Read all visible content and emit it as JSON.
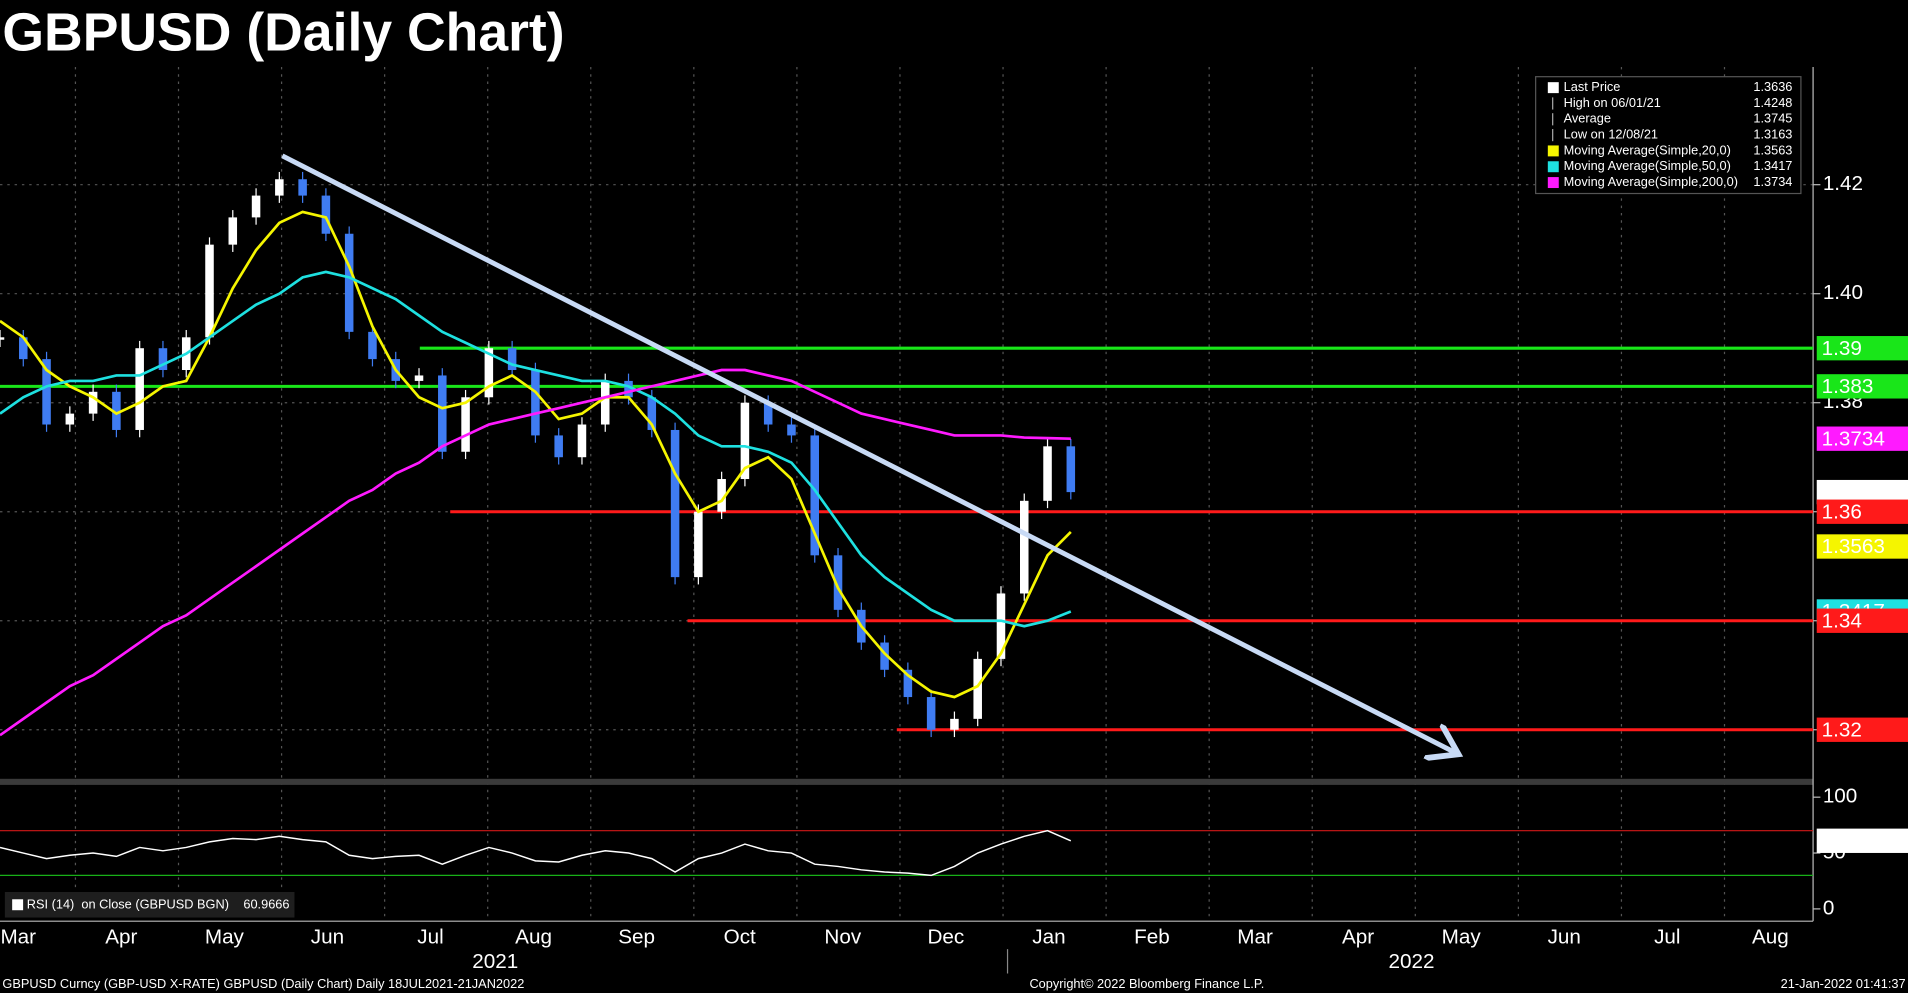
{
  "chart_data": [
    {
      "type": "line",
      "title": "GBPUSD (Daily Chart)",
      "xtick_labels": [
        "Mar",
        "Apr",
        "May",
        "Jun",
        "Jul",
        "Aug",
        "Sep",
        "Oct",
        "Nov",
        "Dec",
        "Jan",
        "Feb",
        "Mar",
        "Apr",
        "May",
        "Jun",
        "Jul",
        "Aug"
      ],
      "year_labels": [
        "2021",
        "2022"
      ],
      "ylim": [
        1.311,
        1.4416
      ],
      "yticks": [
        1.32,
        1.34,
        1.36,
        1.38,
        {
          "value": 1.4,
          "label": "1.40"
        },
        1.42
      ],
      "grid": true,
      "series": [
        {
          "name": "Last Price",
          "style": "candles",
          "color": "#3f7cf2",
          "up_color": "#ffffff",
          "values": [
            1.392,
            1.388,
            1.376,
            1.378,
            1.382,
            1.375,
            1.39,
            1.386,
            1.392,
            1.409,
            1.414,
            1.418,
            1.421,
            1.418,
            1.411,
            1.393,
            1.388,
            1.384,
            1.385,
            1.371,
            1.381,
            1.39,
            1.386,
            1.374,
            1.37,
            1.376,
            1.384,
            1.381,
            1.375,
            1.348,
            1.36,
            1.366,
            1.38,
            1.376,
            1.374,
            1.352,
            1.342,
            1.336,
            1.331,
            1.326,
            1.32,
            1.322,
            1.333,
            1.345,
            1.362,
            1.372,
            1.3636
          ]
        },
        {
          "name": "Moving Average(Simple,20,0)",
          "color": "#f5f500",
          "values": [
            1.395,
            1.392,
            1.386,
            1.383,
            1.381,
            1.378,
            1.38,
            1.383,
            1.384,
            1.392,
            1.401,
            1.408,
            1.413,
            1.415,
            1.414,
            1.405,
            1.394,
            1.386,
            1.381,
            1.379,
            1.38,
            1.383,
            1.385,
            1.382,
            1.377,
            1.378,
            1.381,
            1.381,
            1.376,
            1.367,
            1.36,
            1.362,
            1.368,
            1.37,
            1.366,
            1.356,
            1.346,
            1.339,
            1.334,
            1.33,
            1.327,
            1.326,
            1.328,
            1.334,
            1.343,
            1.352,
            1.3563
          ]
        },
        {
          "name": "Moving Average(Simple,50,0)",
          "color": "#1ee0e0",
          "values": [
            1.378,
            1.381,
            1.383,
            1.384,
            1.384,
            1.385,
            1.385,
            1.387,
            1.389,
            1.392,
            1.395,
            1.398,
            1.4,
            1.403,
            1.404,
            1.403,
            1.401,
            1.399,
            1.396,
            1.393,
            1.391,
            1.389,
            1.387,
            1.386,
            1.385,
            1.384,
            1.384,
            1.383,
            1.381,
            1.378,
            1.374,
            1.372,
            1.372,
            1.371,
            1.369,
            1.364,
            1.358,
            1.352,
            1.348,
            1.345,
            1.342,
            1.34,
            1.34,
            1.34,
            1.339,
            1.34,
            1.3417
          ]
        },
        {
          "name": "Moving Average(Simple,200,0)",
          "color": "#ff1aff",
          "values": [
            1.319,
            1.322,
            1.325,
            1.328,
            1.33,
            1.333,
            1.336,
            1.339,
            1.341,
            1.344,
            1.347,
            1.35,
            1.353,
            1.356,
            1.359,
            1.362,
            1.364,
            1.367,
            1.369,
            1.372,
            1.374,
            1.376,
            1.377,
            1.378,
            1.379,
            1.38,
            1.381,
            1.382,
            1.383,
            1.384,
            1.385,
            1.386,
            1.386,
            1.385,
            1.384,
            1.382,
            1.38,
            1.378,
            1.377,
            1.376,
            1.375,
            1.374,
            1.374,
            1.374,
            1.3736,
            1.3735,
            1.3734
          ]
        }
      ],
      "stats": [
        {
          "label": "High on 06/01/21",
          "value": 1.4248
        },
        {
          "label": "Average",
          "value": 1.3745
        },
        {
          "label": "Low on 12/08/21",
          "value": 1.3163
        }
      ],
      "levels": [
        {
          "value": 1.39,
          "color": "#19e619"
        },
        {
          "value": 1.383,
          "color": "#19e619"
        },
        {
          "value": 1.36,
          "color": "#ff1a1a"
        },
        {
          "value": 1.34,
          "color": "#ff1a1a"
        },
        {
          "value": 1.32,
          "color": "#ff1a1a"
        }
      ]
    },
    {
      "type": "line",
      "ylim": [
        -11,
        111
      ],
      "yticks": [
        0,
        50,
        100
      ],
      "series": [
        {
          "name": "RSI (14)  on Close (GBPUSD BGN)",
          "color": "#ffffff",
          "values": [
            55,
            50,
            45,
            48,
            50,
            47,
            55,
            52,
            55,
            60,
            63,
            62,
            65,
            62,
            60,
            48,
            45,
            47,
            48,
            40,
            48,
            55,
            50,
            43,
            42,
            48,
            52,
            50,
            45,
            33,
            45,
            50,
            58,
            52,
            50,
            40,
            38,
            35,
            33,
            32,
            30,
            38,
            50,
            58,
            65,
            70,
            60.9666
          ]
        }
      ],
      "levels": [
        {
          "value": 70,
          "color": "#d01818"
        },
        {
          "value": 30,
          "color": "#18b018"
        }
      ]
    }
  ],
  "footer": {
    "left": "GBPUSD Curncy (GBP-USD X-RATE) GBPUSD (Daily Chart)  Daily 18JUL2021-21JAN2022",
    "center": "Copyright© 2022 Bloomberg Finance L.P.",
    "right": "21-Jan-2022 01:41:37"
  }
}
